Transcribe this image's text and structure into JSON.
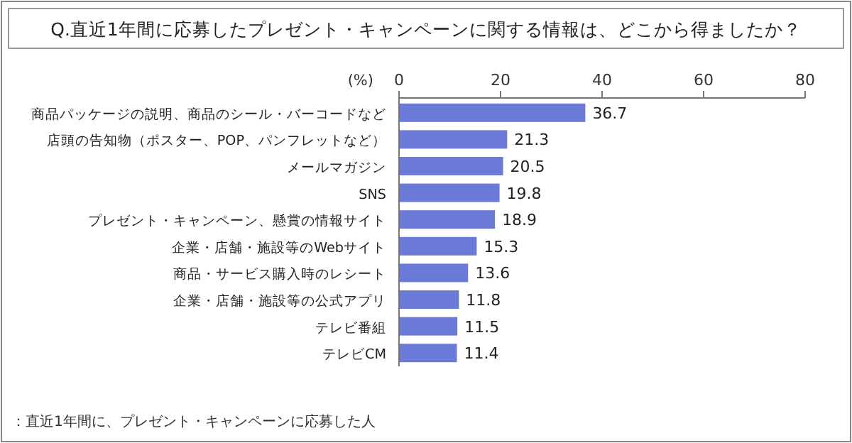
{
  "chart_data": {
    "type": "bar",
    "orientation": "horizontal",
    "title": "Q.直近1年間に応募したプレゼント・キャンペーンに関する情報は、どこから得ましたか？",
    "xlabel": "(%)",
    "categories": [
      "商品パッケージの説明、商品のシール・バーコードなど",
      "店頭の告知物（ポスター、POP、パンフレットなど）",
      "メールマガジン",
      "SNS",
      "プレゼント・キャンペーン、懸賞の情報サイト",
      "企業・店舗・施設等のWebサイト",
      "商品・サービス購入時のレシート",
      "企業・店舗・施設等の公式アプリ",
      "テレビ番組",
      "テレビCM"
    ],
    "values": [
      36.7,
      21.3,
      20.5,
      19.8,
      18.9,
      15.3,
      13.6,
      11.8,
      11.5,
      11.4
    ],
    "color": "#6b7ad6",
    "xlim": [
      0,
      80
    ],
    "xticks": [
      0,
      20,
      40,
      60,
      80
    ],
    "data_labels": true,
    "annotations": [
      "：直近1年間に、プレゼント・キャンペーンに応募した人"
    ]
  }
}
